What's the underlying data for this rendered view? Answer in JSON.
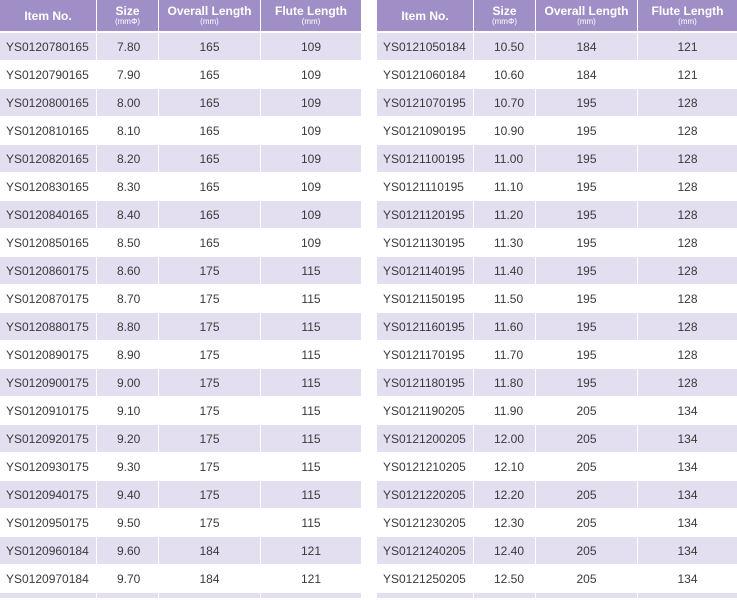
{
  "headers": {
    "item": "Item No.",
    "size": "Size",
    "size_unit": "(mmΦ)",
    "overall": "Overall Length",
    "overall_unit": "(mm)",
    "flute": "Flute Length",
    "flute_unit": "(mm)"
  },
  "left_rows": [
    {
      "item": "YS0120780165",
      "size": "7.80",
      "overall": "165",
      "flute": "109"
    },
    {
      "item": "YS0120790165",
      "size": "7.90",
      "overall": "165",
      "flute": "109"
    },
    {
      "item": "YS0120800165",
      "size": "8.00",
      "overall": "165",
      "flute": "109"
    },
    {
      "item": "YS0120810165",
      "size": "8.10",
      "overall": "165",
      "flute": "109"
    },
    {
      "item": "YS0120820165",
      "size": "8.20",
      "overall": "165",
      "flute": "109"
    },
    {
      "item": "YS0120830165",
      "size": "8.30",
      "overall": "165",
      "flute": "109"
    },
    {
      "item": "YS0120840165",
      "size": "8.40",
      "overall": "165",
      "flute": "109"
    },
    {
      "item": "YS0120850165",
      "size": "8.50",
      "overall": "165",
      "flute": "109"
    },
    {
      "item": "YS0120860175",
      "size": "8.60",
      "overall": "175",
      "flute": "115"
    },
    {
      "item": "YS0120870175",
      "size": "8.70",
      "overall": "175",
      "flute": "115"
    },
    {
      "item": "YS0120880175",
      "size": "8.80",
      "overall": "175",
      "flute": "115"
    },
    {
      "item": "YS0120890175",
      "size": "8.90",
      "overall": "175",
      "flute": "115"
    },
    {
      "item": "YS0120900175",
      "size": "9.00",
      "overall": "175",
      "flute": "115"
    },
    {
      "item": "YS0120910175",
      "size": "9.10",
      "overall": "175",
      "flute": "115"
    },
    {
      "item": "YS0120920175",
      "size": "9.20",
      "overall": "175",
      "flute": "115"
    },
    {
      "item": "YS0120930175",
      "size": "9.30",
      "overall": "175",
      "flute": "115"
    },
    {
      "item": "YS0120940175",
      "size": "9.40",
      "overall": "175",
      "flute": "115"
    },
    {
      "item": "YS0120950175",
      "size": "9.50",
      "overall": "175",
      "flute": "115"
    },
    {
      "item": "YS0120960184",
      "size": "9.60",
      "overall": "184",
      "flute": "121"
    },
    {
      "item": "YS0120970184",
      "size": "9.70",
      "overall": "184",
      "flute": "121"
    }
  ],
  "right_rows": [
    {
      "item": "YS0121050184",
      "size": "10.50",
      "overall": "184",
      "flute": "121"
    },
    {
      "item": "YS0121060184",
      "size": "10.60",
      "overall": "184",
      "flute": "121"
    },
    {
      "item": "YS0121070195",
      "size": "10.70",
      "overall": "195",
      "flute": "128"
    },
    {
      "item": "YS0121090195",
      "size": "10.90",
      "overall": "195",
      "flute": "128"
    },
    {
      "item": "YS0121100195",
      "size": "11.00",
      "overall": "195",
      "flute": "128"
    },
    {
      "item": "YS0121110195",
      "size": "11.10",
      "overall": "195",
      "flute": "128"
    },
    {
      "item": "YS0121120195",
      "size": "11.20",
      "overall": "195",
      "flute": "128"
    },
    {
      "item": "YS0121130195",
      "size": "11.30",
      "overall": "195",
      "flute": "128"
    },
    {
      "item": "YS0121140195",
      "size": "11.40",
      "overall": "195",
      "flute": "128"
    },
    {
      "item": "YS0121150195",
      "size": "11.50",
      "overall": "195",
      "flute": "128"
    },
    {
      "item": "YS0121160195",
      "size": "11.60",
      "overall": "195",
      "flute": "128"
    },
    {
      "item": "YS0121170195",
      "size": "11.70",
      "overall": "195",
      "flute": "128"
    },
    {
      "item": "YS0121180195",
      "size": "11.80",
      "overall": "195",
      "flute": "128"
    },
    {
      "item": "YS0121190205",
      "size": "11.90",
      "overall": "205",
      "flute": "134"
    },
    {
      "item": "YS0121200205",
      "size": "12.00",
      "overall": "205",
      "flute": "134"
    },
    {
      "item": "YS0121210205",
      "size": "12.10",
      "overall": "205",
      "flute": "134"
    },
    {
      "item": "YS0121220205",
      "size": "12.20",
      "overall": "205",
      "flute": "134"
    },
    {
      "item": "YS0121230205",
      "size": "12.30",
      "overall": "205",
      "flute": "134"
    },
    {
      "item": "YS0121240205",
      "size": "12.40",
      "overall": "205",
      "flute": "134"
    },
    {
      "item": "YS0121250205",
      "size": "12.50",
      "overall": "205",
      "flute": "134"
    }
  ],
  "colors": {
    "header_bg": "#a08fc6",
    "header_text": "#ffffff",
    "row_shaded": "#e3def0",
    "row_plain": "#ffffff",
    "text": "#3a3a3a"
  }
}
